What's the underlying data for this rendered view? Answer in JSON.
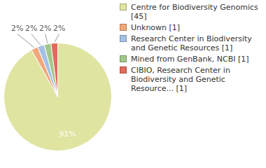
{
  "chart_data": {
    "type": "pie",
    "categories": [
      "Centre for Biodiversity Genomics [45]",
      "Unknown [1]",
      "Research Center in Biodiversity and Genetic Resources [1]",
      "Mined from GenBank, NCBI [1]",
      "CIBIO, Research Center in Biodiversity and Genetic Resource... [1]"
    ],
    "values": [
      91,
      2,
      2,
      2,
      2
    ],
    "value_labels": [
      "91%",
      "2%",
      "2%",
      "2%",
      "2%"
    ],
    "colors": [
      "#dfe4a1",
      "#f1a77a",
      "#a4c0e4",
      "#a2c78a",
      "#e06b5a"
    ],
    "data_labels": true,
    "legend": "right"
  }
}
